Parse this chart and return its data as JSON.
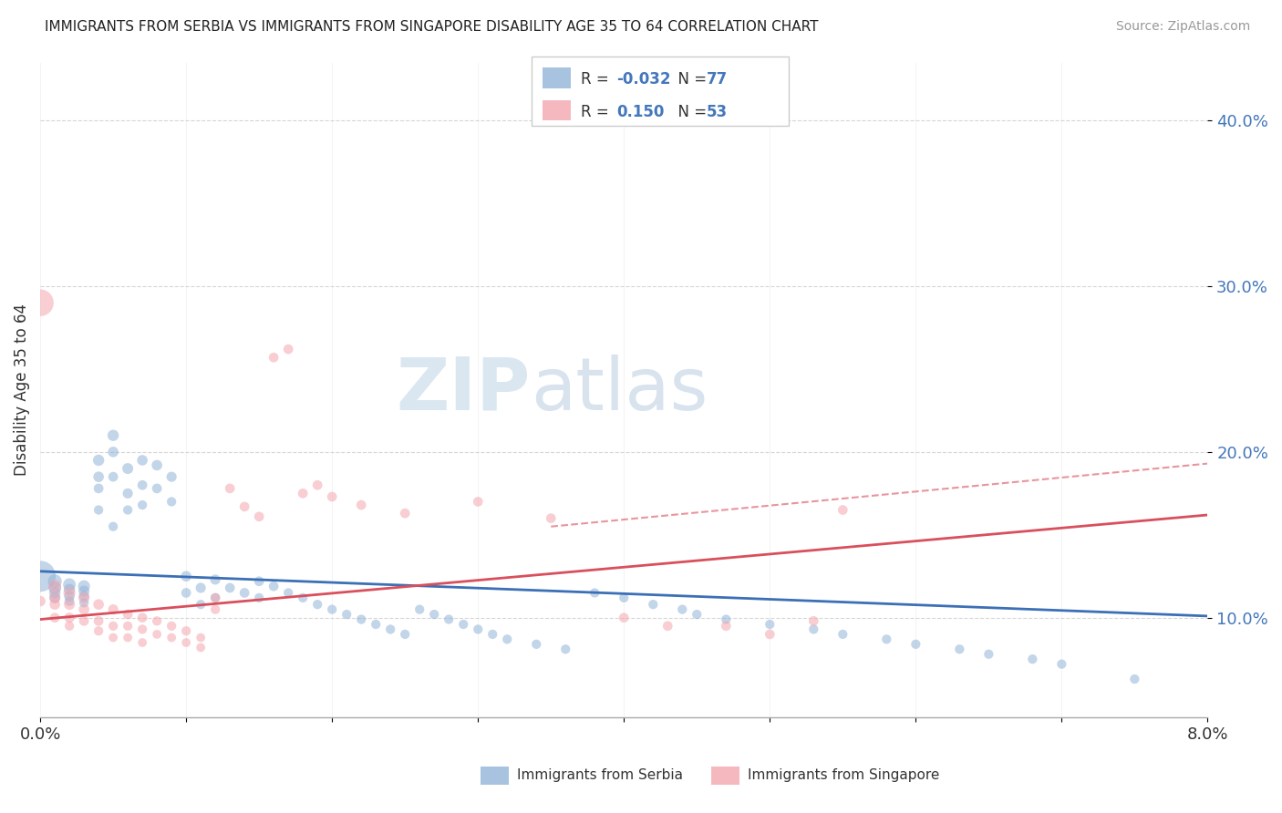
{
  "title": "IMMIGRANTS FROM SERBIA VS IMMIGRANTS FROM SINGAPORE DISABILITY AGE 35 TO 64 CORRELATION CHART",
  "source": "Source: ZipAtlas.com",
  "ylabel": "Disability Age 35 to 64",
  "y_ticks": [
    0.1,
    0.2,
    0.3,
    0.4
  ],
  "y_tick_labels": [
    "10.0%",
    "20.0%",
    "30.0%",
    "40.0%"
  ],
  "x_min": 0.0,
  "x_max": 0.08,
  "y_min": 0.04,
  "y_max": 0.435,
  "serbia_color": "#92B4D7",
  "singapore_color": "#F4A7B0",
  "serbia_line_color": "#3B6FB6",
  "singapore_line_color": "#D94F5C",
  "serbia_R": "-0.032",
  "serbia_N": "77",
  "singapore_R": "0.150",
  "singapore_N": "53",
  "serbia_line": [
    0.0,
    0.128,
    0.08,
    0.101
  ],
  "singapore_line": [
    0.0,
    0.099,
    0.08,
    0.162
  ],
  "singapore_dashed_line": [
    0.035,
    0.155,
    0.08,
    0.193
  ],
  "watermark_zip": "ZIP",
  "watermark_atlas": "atlas",
  "serbia_points_x": [
    0.0,
    0.001,
    0.001,
    0.001,
    0.001,
    0.002,
    0.002,
    0.002,
    0.002,
    0.003,
    0.003,
    0.003,
    0.003,
    0.004,
    0.004,
    0.004,
    0.004,
    0.005,
    0.005,
    0.005,
    0.005,
    0.006,
    0.006,
    0.006,
    0.007,
    0.007,
    0.007,
    0.008,
    0.008,
    0.009,
    0.009,
    0.01,
    0.01,
    0.011,
    0.011,
    0.012,
    0.012,
    0.013,
    0.014,
    0.015,
    0.015,
    0.016,
    0.017,
    0.018,
    0.019,
    0.02,
    0.021,
    0.022,
    0.023,
    0.024,
    0.025,
    0.026,
    0.027,
    0.028,
    0.029,
    0.03,
    0.031,
    0.032,
    0.034,
    0.036,
    0.038,
    0.04,
    0.042,
    0.044,
    0.045,
    0.047,
    0.05,
    0.053,
    0.055,
    0.058,
    0.06,
    0.063,
    0.065,
    0.068,
    0.07,
    0.075
  ],
  "serbia_points_y": [
    0.125,
    0.122,
    0.118,
    0.115,
    0.112,
    0.12,
    0.117,
    0.113,
    0.11,
    0.119,
    0.116,
    0.113,
    0.109,
    0.195,
    0.185,
    0.178,
    0.165,
    0.21,
    0.2,
    0.185,
    0.155,
    0.19,
    0.175,
    0.165,
    0.195,
    0.18,
    0.168,
    0.192,
    0.178,
    0.185,
    0.17,
    0.125,
    0.115,
    0.118,
    0.108,
    0.123,
    0.112,
    0.118,
    0.115,
    0.122,
    0.112,
    0.119,
    0.115,
    0.112,
    0.108,
    0.105,
    0.102,
    0.099,
    0.096,
    0.093,
    0.09,
    0.105,
    0.102,
    0.099,
    0.096,
    0.093,
    0.09,
    0.087,
    0.084,
    0.081,
    0.115,
    0.112,
    0.108,
    0.105,
    0.102,
    0.099,
    0.096,
    0.093,
    0.09,
    0.087,
    0.084,
    0.081,
    0.078,
    0.075,
    0.072,
    0.063
  ],
  "serbia_sizes": [
    600,
    120,
    100,
    80,
    70,
    100,
    80,
    70,
    60,
    90,
    75,
    65,
    55,
    80,
    70,
    60,
    55,
    80,
    70,
    60,
    55,
    75,
    65,
    55,
    70,
    60,
    55,
    70,
    60,
    65,
    55,
    70,
    60,
    65,
    55,
    65,
    55,
    60,
    60,
    60,
    55,
    60,
    55,
    55,
    55,
    55,
    55,
    55,
    55,
    55,
    55,
    55,
    55,
    55,
    55,
    55,
    55,
    55,
    55,
    55,
    55,
    55,
    55,
    55,
    55,
    55,
    55,
    55,
    55,
    55,
    55,
    55,
    55,
    55,
    55,
    55
  ],
  "singapore_points_x": [
    0.0,
    0.0,
    0.001,
    0.001,
    0.001,
    0.001,
    0.002,
    0.002,
    0.002,
    0.002,
    0.003,
    0.003,
    0.003,
    0.004,
    0.004,
    0.004,
    0.005,
    0.005,
    0.005,
    0.006,
    0.006,
    0.006,
    0.007,
    0.007,
    0.007,
    0.008,
    0.008,
    0.009,
    0.009,
    0.01,
    0.01,
    0.011,
    0.011,
    0.012,
    0.012,
    0.013,
    0.014,
    0.015,
    0.016,
    0.017,
    0.018,
    0.019,
    0.02,
    0.022,
    0.025,
    0.03,
    0.035,
    0.04,
    0.043,
    0.047,
    0.05,
    0.053,
    0.055
  ],
  "singapore_points_y": [
    0.29,
    0.11,
    0.119,
    0.112,
    0.108,
    0.1,
    0.115,
    0.108,
    0.1,
    0.095,
    0.112,
    0.105,
    0.098,
    0.108,
    0.098,
    0.092,
    0.105,
    0.095,
    0.088,
    0.102,
    0.095,
    0.088,
    0.1,
    0.093,
    0.085,
    0.098,
    0.09,
    0.095,
    0.088,
    0.092,
    0.085,
    0.088,
    0.082,
    0.112,
    0.105,
    0.178,
    0.167,
    0.161,
    0.257,
    0.262,
    0.175,
    0.18,
    0.173,
    0.168,
    0.163,
    0.17,
    0.16,
    0.1,
    0.095,
    0.095,
    0.09,
    0.098,
    0.165
  ],
  "singapore_sizes": [
    450,
    70,
    100,
    80,
    70,
    60,
    90,
    75,
    65,
    55,
    80,
    70,
    60,
    70,
    60,
    55,
    65,
    55,
    50,
    60,
    55,
    50,
    60,
    55,
    50,
    55,
    50,
    55,
    50,
    55,
    50,
    50,
    50,
    60,
    55,
    60,
    60,
    60,
    60,
    60,
    60,
    60,
    60,
    60,
    60,
    60,
    60,
    60,
    60,
    60,
    60,
    60,
    60
  ]
}
